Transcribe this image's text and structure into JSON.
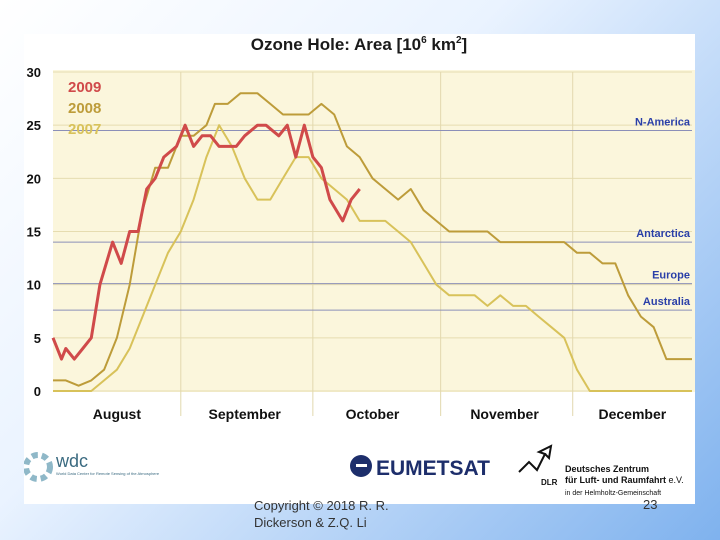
{
  "chart_data": {
    "type": "line",
    "title_main": "Ozone Hole: Area [10",
    "title_sup": "6",
    "title_unit": " km",
    "title_sup2": "2",
    "title_end": "]",
    "ylim": [
      0,
      30
    ],
    "yticks": [
      "0",
      "5",
      "10",
      "15",
      "20",
      "25",
      "30"
    ],
    "xlim": [
      0,
      150
    ],
    "month_labels": [
      {
        "label": "August",
        "x": 15
      },
      {
        "label": "September",
        "x": 45
      },
      {
        "label": "October",
        "x": 75
      },
      {
        "label": "November",
        "x": 106
      },
      {
        "label": "December",
        "x": 136
      }
    ],
    "month_boundaries": [
      30,
      61,
      91,
      122
    ],
    "reference_lines": [
      {
        "label": "N-America",
        "value": 24.5
      },
      {
        "label": "Antarctica",
        "value": 14.0
      },
      {
        "label": "Europe",
        "value": 10.1
      },
      {
        "label": "Australia",
        "value": 7.6
      }
    ],
    "series": [
      {
        "name": "2009",
        "color": "#d04a4a",
        "x": [
          0,
          2,
          3,
          5,
          7,
          9,
          11,
          14,
          16,
          18,
          20,
          22,
          24,
          26,
          29,
          31,
          33,
          35,
          37,
          39,
          41,
          43,
          45,
          48,
          50,
          53,
          55,
          57,
          59,
          61,
          63,
          65,
          68,
          70,
          72
        ],
        "y": [
          5,
          3,
          4,
          3,
          4,
          5,
          10,
          14,
          12,
          15,
          15,
          19,
          20,
          22,
          23,
          25,
          23,
          24,
          24,
          23,
          23,
          23,
          24,
          25,
          25,
          24,
          25,
          22,
          25,
          22,
          21,
          18,
          16,
          18,
          19
        ]
      },
      {
        "name": "2008",
        "color": "#bd9c3a",
        "x": [
          0,
          3,
          6,
          9,
          12,
          15,
          18,
          21,
          24,
          27,
          30,
          33,
          36,
          38,
          41,
          44,
          46,
          48,
          51,
          54,
          57,
          60,
          63,
          66,
          69,
          72,
          75,
          78,
          81,
          84,
          87,
          90,
          93,
          96,
          99,
          102,
          105,
          108,
          111,
          114,
          117,
          120,
          123,
          126,
          129,
          132,
          135,
          138,
          141,
          144,
          147,
          150
        ],
        "y": [
          1,
          1,
          0.5,
          1,
          2,
          5,
          10,
          17,
          21,
          21,
          24,
          24,
          25,
          27,
          27,
          28,
          28,
          28,
          27,
          26,
          26,
          26,
          27,
          26,
          23,
          22,
          20,
          19,
          18,
          19,
          17,
          16,
          15,
          15,
          15,
          15,
          14,
          14,
          14,
          14,
          14,
          14,
          13,
          13,
          12,
          12,
          9,
          7,
          6,
          3,
          3,
          3
        ]
      },
      {
        "name": "2007",
        "color": "#d8c25a",
        "x": [
          0,
          3,
          6,
          9,
          12,
          15,
          18,
          21,
          24,
          27,
          30,
          33,
          36,
          39,
          42,
          45,
          48,
          51,
          54,
          57,
          60,
          63,
          66,
          69,
          72,
          75,
          78,
          81,
          84,
          87,
          90,
          93,
          96,
          99,
          102,
          105,
          108,
          111,
          114,
          117,
          120,
          123,
          126,
          129,
          132,
          135,
          138,
          141,
          144,
          147,
          150
        ],
        "y": [
          0,
          0,
          0,
          0,
          1,
          2,
          4,
          7,
          10,
          13,
          15,
          18,
          22,
          25,
          23,
          20,
          18,
          18,
          20,
          22,
          22,
          20,
          19,
          18,
          16,
          16,
          16,
          15,
          14,
          12,
          10,
          9,
          9,
          9,
          8,
          9,
          8,
          8,
          7,
          6,
          5,
          2,
          0,
          0,
          0,
          0,
          0,
          0,
          0,
          0,
          0
        ]
      }
    ]
  },
  "logos": {
    "wdc": "wdc",
    "wdc_sub": "World Data Center for Remote Sensing of the Atmosphere",
    "eumetsat": "EUMETSAT",
    "dlr": "DLR",
    "dlr_line1": "Deutsches Zentrum",
    "dlr_line2": "für Luft- und Raumfahrt",
    "dlr_ev": " e.V.",
    "dlr_line3": "in der Helmholtz-Gemeinschaft"
  },
  "footer": {
    "copyright_line1": "Copyright © 2018  R. R.",
    "copyright_line2": "Dickerson & Z.Q. Li",
    "page_number": "23"
  }
}
